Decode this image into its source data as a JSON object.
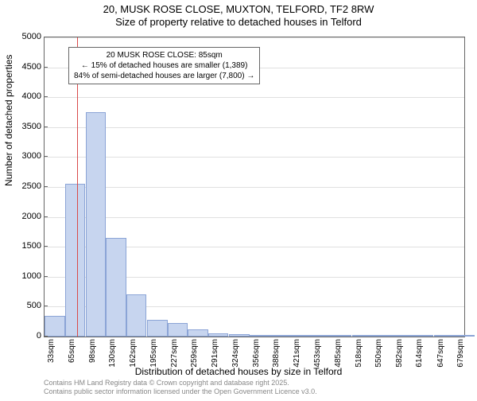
{
  "title_line1": "20, MUSK ROSE CLOSE, MUXTON, TELFORD, TF2 8RW",
  "title_line2": "Size of property relative to detached houses in Telford",
  "ylabel": "Number of detached properties",
  "xlabel": "Distribution of detached houses by size in Telford",
  "footer_line1": "Contains HM Land Registry data © Crown copyright and database right 2025.",
  "footer_line2": "Contains public sector information licensed under the Open Government Licence v3.0.",
  "chart": {
    "type": "histogram",
    "background_color": "#ffffff",
    "grid_color": "#e0e0e0",
    "axis_color": "#666666",
    "bar_fill": "#c7d5ef",
    "bar_border": "#8ba4d6",
    "marker_color": "#d94a4a",
    "ylim": [
      0,
      5000
    ],
    "ytick_step": 500,
    "yticks": [
      0,
      500,
      1000,
      1500,
      2000,
      2500,
      3000,
      3500,
      4000,
      4500,
      5000
    ],
    "x_min": 33,
    "x_max": 695,
    "xticks": [
      33,
      65,
      98,
      130,
      162,
      195,
      227,
      259,
      291,
      324,
      356,
      388,
      421,
      453,
      485,
      518,
      550,
      582,
      614,
      647,
      679
    ],
    "xtick_suffix": "sqm",
    "bars": [
      {
        "x": 33,
        "v": 350
      },
      {
        "x": 65,
        "v": 2550
      },
      {
        "x": 98,
        "v": 3750
      },
      {
        "x": 130,
        "v": 1650
      },
      {
        "x": 162,
        "v": 700
      },
      {
        "x": 195,
        "v": 280
      },
      {
        "x": 227,
        "v": 220
      },
      {
        "x": 259,
        "v": 120
      },
      {
        "x": 291,
        "v": 60
      },
      {
        "x": 324,
        "v": 40
      },
      {
        "x": 356,
        "v": 25
      },
      {
        "x": 388,
        "v": 15
      },
      {
        "x": 421,
        "v": 10
      },
      {
        "x": 453,
        "v": 8
      },
      {
        "x": 485,
        "v": 6
      },
      {
        "x": 518,
        "v": 5
      },
      {
        "x": 550,
        "v": 4
      },
      {
        "x": 582,
        "v": 3
      },
      {
        "x": 614,
        "v": 3
      },
      {
        "x": 647,
        "v": 2
      },
      {
        "x": 679,
        "v": 2
      }
    ],
    "bar_span": 32,
    "marker_x": 85,
    "annotation": {
      "line1": "20 MUSK ROSE CLOSE: 85sqm",
      "line2": "← 15% of detached houses are smaller (1,389)",
      "line3": "84% of semi-detached houses are larger (7,800) →",
      "border_color": "#666666",
      "background": "#ffffff",
      "fontsize": 10
    }
  }
}
